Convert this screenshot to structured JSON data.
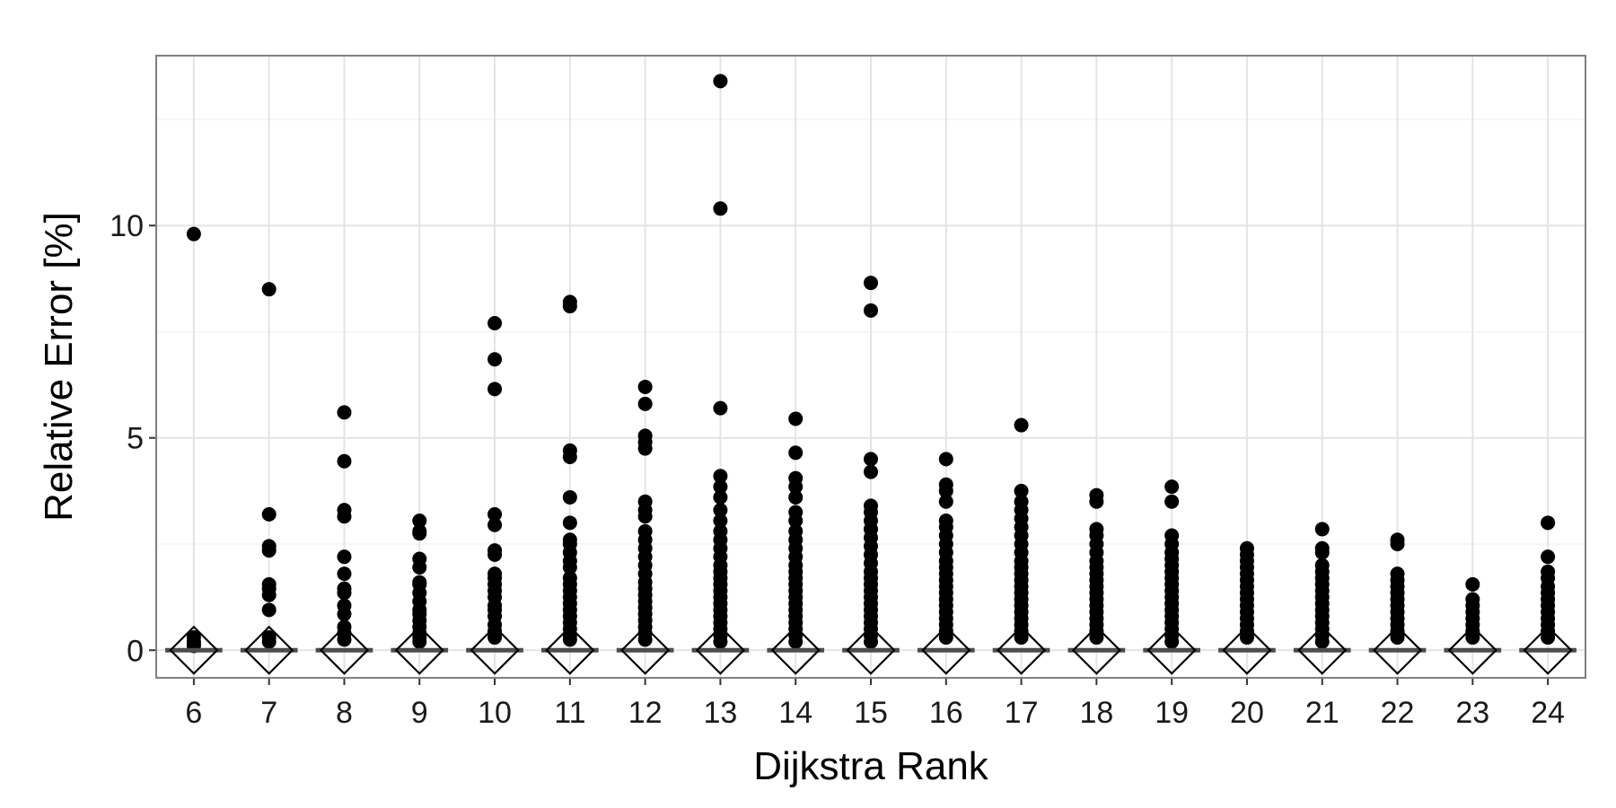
{
  "chart_data": {
    "type": "scatter",
    "xlabel": "Dijkstra Rank",
    "ylabel": "Relative Error [%]",
    "ylim": [
      -0.65,
      14.0
    ],
    "yticks": [
      0,
      5,
      10
    ],
    "grid": true,
    "categories": [
      "6",
      "7",
      "8",
      "9",
      "10",
      "11",
      "12",
      "13",
      "14",
      "15",
      "16",
      "17",
      "18",
      "19",
      "20",
      "21",
      "22",
      "23",
      "24"
    ],
    "median": [
      0,
      0,
      0,
      0,
      0,
      0,
      0,
      0,
      0,
      0,
      0,
      0,
      0,
      0,
      0,
      0,
      0,
      0,
      0
    ],
    "mean": [
      0,
      0,
      0,
      0,
      0,
      0,
      0,
      0,
      0,
      0,
      0,
      0,
      0,
      0,
      0,
      0,
      0,
      0,
      0
    ],
    "outliers": [
      [
        9.8,
        0.3,
        0.2,
        0.15,
        0.1
      ],
      [
        8.5,
        3.2,
        2.45,
        2.35,
        1.55,
        1.45,
        1.3,
        0.95,
        0.3,
        0.2
      ],
      [
        5.6,
        4.45,
        3.3,
        3.15,
        2.2,
        1.8,
        1.45,
        1.35,
        1.05,
        0.85,
        0.55,
        0.4,
        0.25
      ],
      [
        3.05,
        2.8,
        2.75,
        2.15,
        1.95,
        1.6,
        1.55,
        1.35,
        1.15,
        0.95,
        0.85,
        0.7,
        0.55,
        0.4,
        0.3,
        0.2
      ],
      [
        7.7,
        6.85,
        6.15,
        3.2,
        2.95,
        2.35,
        2.25,
        1.8,
        1.7,
        1.55,
        1.4,
        1.25,
        1.05,
        0.95,
        0.8,
        0.6,
        0.45,
        0.3
      ],
      [
        8.2,
        8.1,
        4.7,
        4.55,
        3.6,
        3.0,
        2.6,
        2.5,
        2.3,
        2.1,
        1.95,
        1.7,
        1.55,
        1.4,
        1.25,
        1.1,
        0.95,
        0.8,
        0.65,
        0.5,
        0.35,
        0.25
      ],
      [
        6.2,
        5.8,
        5.05,
        4.9,
        4.75,
        3.5,
        3.3,
        3.15,
        2.8,
        2.6,
        2.4,
        2.2,
        2.0,
        1.8,
        1.6,
        1.45,
        1.3,
        1.15,
        1.0,
        0.85,
        0.7,
        0.55,
        0.4,
        0.25
      ],
      [
        13.4,
        10.4,
        5.7,
        4.1,
        3.85,
        3.6,
        3.3,
        3.05,
        2.8,
        2.6,
        2.4,
        2.2,
        2.0,
        1.85,
        1.7,
        1.55,
        1.4,
        1.25,
        1.1,
        0.95,
        0.8,
        0.65,
        0.5,
        0.35,
        0.2
      ],
      [
        5.45,
        4.65,
        4.05,
        3.85,
        3.6,
        3.25,
        3.05,
        2.8,
        2.6,
        2.4,
        2.2,
        2.0,
        1.85,
        1.7,
        1.55,
        1.4,
        1.25,
        1.1,
        0.95,
        0.8,
        0.65,
        0.5,
        0.35,
        0.2
      ],
      [
        8.65,
        8.0,
        4.5,
        4.2,
        3.4,
        3.25,
        3.05,
        2.85,
        2.65,
        2.45,
        2.25,
        2.05,
        1.85,
        1.7,
        1.55,
        1.4,
        1.25,
        1.1,
        0.95,
        0.8,
        0.65,
        0.5,
        0.35,
        0.2
      ],
      [
        4.5,
        3.9,
        3.75,
        3.5,
        3.05,
        2.9,
        2.7,
        2.5,
        2.3,
        2.1,
        1.95,
        1.8,
        1.65,
        1.5,
        1.35,
        1.2,
        1.05,
        0.9,
        0.75,
        0.6,
        0.45,
        0.3
      ],
      [
        5.3,
        3.75,
        3.5,
        3.3,
        3.1,
        2.9,
        2.7,
        2.5,
        2.3,
        2.1,
        1.95,
        1.8,
        1.65,
        1.5,
        1.35,
        1.2,
        1.05,
        0.9,
        0.75,
        0.6,
        0.45,
        0.3
      ],
      [
        3.65,
        3.5,
        2.85,
        2.7,
        2.5,
        2.3,
        2.1,
        1.95,
        1.8,
        1.65,
        1.5,
        1.35,
        1.2,
        1.05,
        0.9,
        0.75,
        0.6,
        0.45,
        0.3
      ],
      [
        3.85,
        3.5,
        2.7,
        2.5,
        2.3,
        2.15,
        2.0,
        1.85,
        1.7,
        1.55,
        1.4,
        1.25,
        1.1,
        0.95,
        0.8,
        0.65,
        0.5,
        0.35,
        0.2
      ],
      [
        2.4,
        2.25,
        2.1,
        1.95,
        1.8,
        1.65,
        1.5,
        1.35,
        1.2,
        1.05,
        0.9,
        0.75,
        0.6,
        0.45,
        0.3
      ],
      [
        2.85,
        2.4,
        2.3,
        2.0,
        1.85,
        1.7,
        1.55,
        1.4,
        1.25,
        1.1,
        0.95,
        0.8,
        0.65,
        0.5,
        0.35,
        0.2
      ],
      [
        2.6,
        2.5,
        1.8,
        1.65,
        1.5,
        1.35,
        1.2,
        1.05,
        0.9,
        0.75,
        0.6,
        0.45,
        0.3
      ],
      [
        1.55,
        1.2,
        1.05,
        0.9,
        0.75,
        0.6,
        0.45,
        0.3
      ],
      [
        3.0,
        2.2,
        1.85,
        1.7,
        1.5,
        1.35,
        1.2,
        1.05,
        0.9,
        0.75,
        0.6,
        0.45,
        0.3
      ]
    ]
  }
}
